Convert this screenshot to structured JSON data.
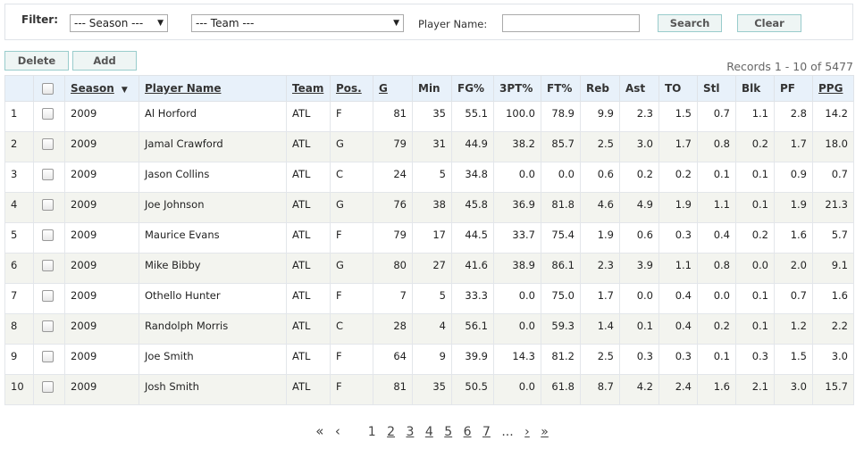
{
  "filter": {
    "label": "Filter:",
    "season_placeholder": "--- Season ---",
    "team_placeholder": "--- Team ---",
    "player_name_label": "Player Name:",
    "player_name_value": "",
    "search_label": "Search",
    "clear_label": "Clear"
  },
  "actions": {
    "delete_label": "Delete",
    "add_label": "Add"
  },
  "records_text": "Records 1 - 10 of 5477",
  "table": {
    "columns": [
      "",
      "",
      "Season",
      "Player Name",
      "Team",
      "Pos.",
      "G",
      "Min",
      "FG%",
      "3PT%",
      "FT%",
      "Reb",
      "Ast",
      "TO",
      "Stl",
      "Blk",
      "PF",
      "PPG"
    ],
    "rows": [
      [
        "1",
        "",
        "2009",
        "Al Horford",
        "ATL",
        "F",
        "81",
        "35",
        "55.1",
        "100.0",
        "78.9",
        "9.9",
        "2.3",
        "1.5",
        "0.7",
        "1.1",
        "2.8",
        "14.2"
      ],
      [
        "2",
        "",
        "2009",
        "Jamal Crawford",
        "ATL",
        "G",
        "79",
        "31",
        "44.9",
        "38.2",
        "85.7",
        "2.5",
        "3.0",
        "1.7",
        "0.8",
        "0.2",
        "1.7",
        "18.0"
      ],
      [
        "3",
        "",
        "2009",
        "Jason Collins",
        "ATL",
        "C",
        "24",
        "5",
        "34.8",
        "0.0",
        "0.0",
        "0.6",
        "0.2",
        "0.2",
        "0.1",
        "0.1",
        "0.9",
        "0.7"
      ],
      [
        "4",
        "",
        "2009",
        "Joe Johnson",
        "ATL",
        "G",
        "76",
        "38",
        "45.8",
        "36.9",
        "81.8",
        "4.6",
        "4.9",
        "1.9",
        "1.1",
        "0.1",
        "1.9",
        "21.3"
      ],
      [
        "5",
        "",
        "2009",
        "Maurice Evans",
        "ATL",
        "F",
        "79",
        "17",
        "44.5",
        "33.7",
        "75.4",
        "1.9",
        "0.6",
        "0.3",
        "0.4",
        "0.2",
        "1.6",
        "5.7"
      ],
      [
        "6",
        "",
        "2009",
        "Mike Bibby",
        "ATL",
        "G",
        "80",
        "27",
        "41.6",
        "38.9",
        "86.1",
        "2.3",
        "3.9",
        "1.1",
        "0.8",
        "0.0",
        "2.0",
        "9.1"
      ],
      [
        "7",
        "",
        "2009",
        "Othello Hunter",
        "ATL",
        "F",
        "7",
        "5",
        "33.3",
        "0.0",
        "75.0",
        "1.7",
        "0.0",
        "0.4",
        "0.0",
        "0.1",
        "0.7",
        "1.6"
      ],
      [
        "8",
        "",
        "2009",
        "Randolph Morris",
        "ATL",
        "C",
        "28",
        "4",
        "56.1",
        "0.0",
        "59.3",
        "1.4",
        "0.1",
        "0.4",
        "0.2",
        "0.1",
        "1.2",
        "2.2"
      ],
      [
        "9",
        "",
        "2009",
        "Joe Smith",
        "ATL",
        "F",
        "64",
        "9",
        "39.9",
        "14.3",
        "81.2",
        "2.5",
        "0.3",
        "0.3",
        "0.1",
        "0.3",
        "1.5",
        "3.0"
      ],
      [
        "10",
        "",
        "2009",
        "Josh Smith",
        "ATL",
        "F",
        "81",
        "35",
        "50.5",
        "0.0",
        "61.8",
        "8.7",
        "4.2",
        "2.4",
        "1.6",
        "2.1",
        "3.0",
        "15.7"
      ]
    ]
  },
  "pagination": {
    "first": "«",
    "prev": "‹",
    "pages": [
      "1",
      "2",
      "3",
      "4",
      "5",
      "6",
      "7"
    ],
    "ellipsis": "...",
    "next": "›",
    "last": "»"
  }
}
